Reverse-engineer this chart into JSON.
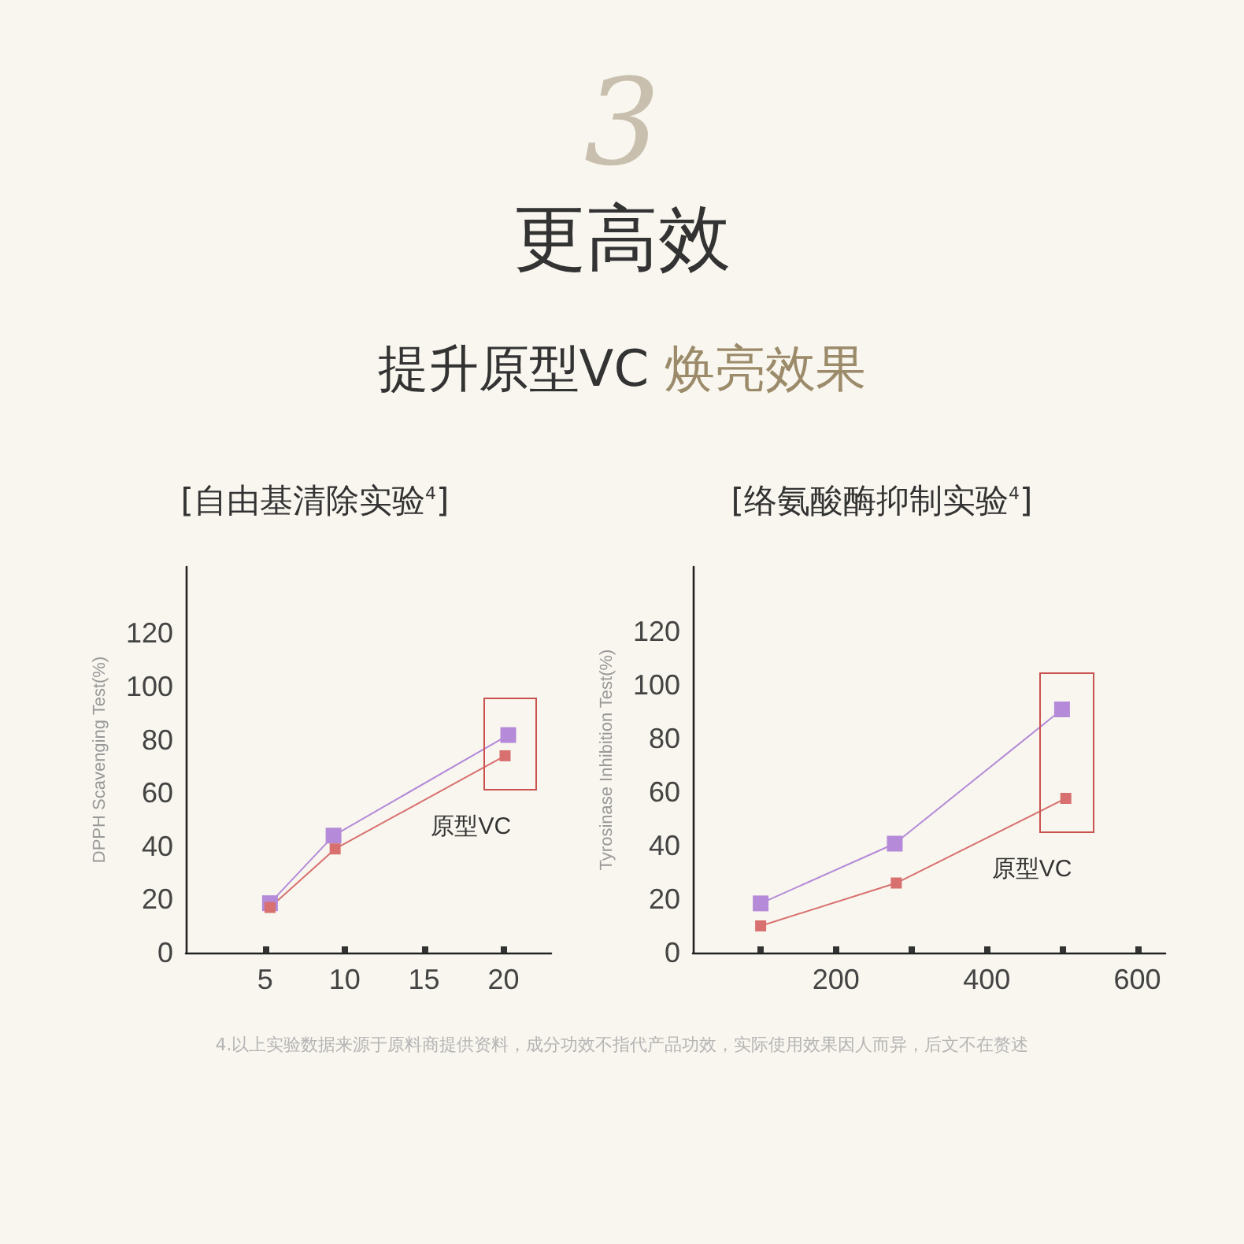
{
  "chart_data": [
    {
      "type": "line",
      "title": "[自由基清除实验$^{4}$]",
      "ylabel": "DPPH Scavenging Test(%)",
      "annotations": [
        "3",
        "更高效",
        "提升原型VC",
        "焕亮效果",
        "4.以上实验数据来源于原料商提供资料，成分功效不指代产品功效，实际使用效果因人而异，后文不在赘述"
      ],
      "xlim": [
        0,
        23
      ],
      "xticks": [
        5,
        10,
        15,
        20
      ],
      "ylim": [
        0,
        145
      ],
      "yticks": [
        0,
        20,
        40,
        60,
        80,
        100,
        120
      ],
      "marker": "square",
      "line_style": "solid",
      "grid": false,
      "legend": false,
      "series": [
        {
          "color": "#b48ad9",
          "x": [
            5.3,
            9.3,
            20.3
          ],
          "values": [
            18.6,
            44,
            81.8
          ]
        },
        {
          "name": "原型VC",
          "color": "#d8706f",
          "x": [
            5.3,
            9.4,
            20.1
          ],
          "values": [
            17,
            39,
            74
          ]
        }
      ]
    },
    {
      "type": "line",
      "title": "[络氨酸酶抑制实验$^{4}$]",
      "ylabel": "Tyrosinase Inhibition Test(%)",
      "xlim": [
        10,
        637
      ],
      "xticks": [
        {
          "value": 100,
          "label": null
        },
        200,
        {
          "value": 300,
          "label": null
        },
        400,
        {
          "value": 500,
          "label": null
        },
        600
      ],
      "ylim": [
        0,
        144
      ],
      "yticks": [
        0,
        20,
        40,
        60,
        80,
        100,
        120
      ],
      "marker": "square",
      "line_style": "solid",
      "grid": false,
      "legend": false,
      "series": [
        {
          "color": "#b48ad9",
          "x": [
            100,
            278,
            500
          ],
          "values": [
            18.4,
            40.7,
            90.8
          ]
        },
        {
          "name": "原型VC",
          "color": "#d8706f",
          "x": [
            100,
            280,
            505
          ],
          "values": [
            10,
            26,
            57.6
          ]
        }
      ]
    }
  ]
}
